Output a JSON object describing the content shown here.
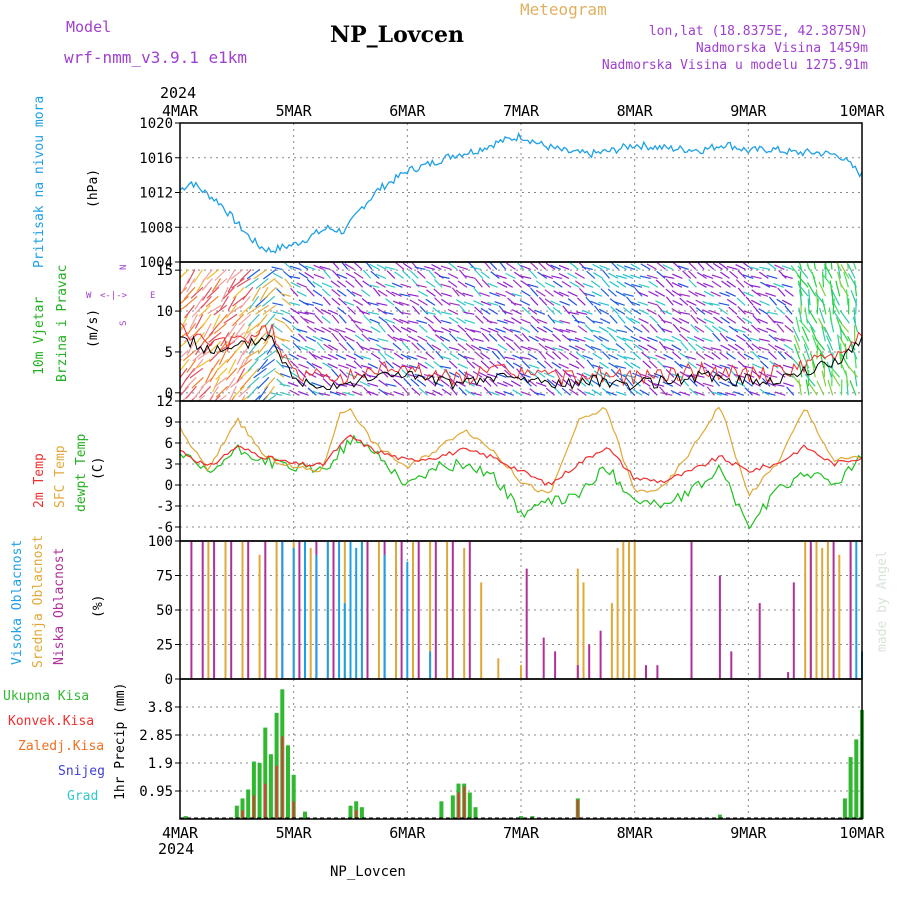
{
  "header": {
    "model_label": "Model",
    "model_name": "wrf-nmm_v3.9.1 e1km",
    "station": "NP_Lovcen",
    "product": "Meteogram",
    "coords": "lon,lat (18.8375E, 42.3875N)",
    "altitude": "Nadmorska Visina 1459m",
    "model_altitude": "Nadmorska Visina u modelu 1275.91m",
    "year_top": "2024",
    "year_bottom": "2024",
    "footer": "NP_Lovcen",
    "watermark": "made by Angel"
  },
  "colors": {
    "pressure": "#1ea0e6",
    "t2m": "#ee3030",
    "sfc": "#e0a838",
    "dewpt": "#22c022",
    "high_cloud": "#1ea0e6",
    "mid_cloud": "#e0a838",
    "low_cloud": "#b0309a",
    "total_precip": "#30b830",
    "conv_precip": "#ee3030",
    "frozen_precip": "#ee7020",
    "snow": "#4040d8",
    "graupel": "#30c8c8",
    "wind_label": "#22b022",
    "purple_text": "#a040d0",
    "gold_text": "#e0b060"
  },
  "time_axis": {
    "ticks": [
      "4MAR",
      "5MAR",
      "6MAR",
      "7MAR",
      "8MAR",
      "9MAR",
      "10MAR"
    ],
    "range_days": [
      0,
      6
    ]
  },
  "chart_data": [
    {
      "id": "pressure",
      "type": "line",
      "ylabel_lines": [
        "Pritisak na nivou mora",
        "(hPa)"
      ],
      "ylim": [
        1004,
        1020
      ],
      "yticks": [
        1004,
        1008,
        1012,
        1016,
        1020
      ],
      "series": [
        {
          "x": [
            0,
            0.1,
            0.2,
            0.35,
            0.5,
            0.6,
            0.7,
            0.8,
            0.9,
            1.0,
            1.1,
            1.2,
            1.3,
            1.45,
            1.6,
            1.75,
            1.9,
            2.0,
            2.2,
            2.4,
            2.6,
            2.8,
            3.0,
            3.2,
            3.4,
            3.6,
            3.8,
            4.0,
            4.2,
            4.4,
            4.6,
            4.8,
            5.0,
            5.2,
            5.4,
            5.6,
            5.8,
            6.0
          ],
          "y": [
            1012.3,
            1013.2,
            1012.2,
            1010.8,
            1008.5,
            1007.0,
            1005.8,
            1005.3,
            1005.7,
            1006.0,
            1006.6,
            1007.3,
            1007.9,
            1007.5,
            1010.3,
            1012.4,
            1013.6,
            1014.5,
            1015.3,
            1016.3,
            1016.8,
            1017.8,
            1018.5,
            1017.4,
            1016.7,
            1016.4,
            1016.8,
            1017.5,
            1017.2,
            1017.0,
            1016.9,
            1017.6,
            1016.8,
            1017.0,
            1016.6,
            1016.6,
            1016.3,
            1014.0
          ]
        }
      ]
    },
    {
      "id": "wind",
      "type": "barbs",
      "ylabel_lines": [
        "10m Vjetar",
        "Brzina i Pravac",
        "(m/s)"
      ],
      "compass": [
        "N",
        "S",
        "W",
        "E"
      ],
      "ylim": [
        -1,
        16
      ],
      "yticks": [
        0,
        5,
        10,
        15
      ],
      "series": [
        {
          "name": "speed",
          "x": [
            0,
            0.2,
            0.4,
            0.6,
            0.8,
            1.0,
            1.3,
            1.6,
            1.9,
            2.2,
            2.5,
            2.8,
            3.1,
            3.4,
            3.7,
            4.0,
            4.3,
            4.6,
            4.9,
            5.2,
            5.5,
            5.8,
            6.0
          ],
          "y": [
            7,
            5.5,
            5,
            6,
            7,
            1.5,
            1,
            1.5,
            2.5,
            1.5,
            1,
            2,
            1.5,
            1,
            1.5,
            1,
            1.5,
            2,
            1.5,
            1.5,
            2.5,
            4,
            6.5
          ]
        }
      ]
    },
    {
      "id": "temperature",
      "type": "line",
      "ylabel_lines": [
        "2m Temp",
        "SFC Temp",
        "dewpt Temp",
        "(C)"
      ],
      "ylim": [
        -8,
        12
      ],
      "yticks": [
        -6,
        -3,
        0,
        3,
        6,
        9,
        12
      ],
      "series": [
        {
          "name": "2m Temp",
          "x": [
            0,
            0.25,
            0.5,
            0.75,
            1.0,
            1.25,
            1.4,
            1.5,
            1.7,
            2.0,
            2.25,
            2.5,
            2.75,
            3.0,
            3.25,
            3.5,
            3.75,
            4.0,
            4.25,
            4.5,
            4.75,
            5.0,
            5.25,
            5.5,
            5.75,
            6.0
          ],
          "y": [
            5,
            2.5,
            5.5,
            4,
            3,
            2.8,
            5.5,
            7,
            5,
            3.5,
            4,
            5,
            4,
            2,
            0,
            3,
            5.5,
            1,
            0.5,
            2,
            4,
            2,
            3,
            5.5,
            3,
            4
          ]
        },
        {
          "name": "SFC Temp",
          "x": [
            0,
            0.25,
            0.5,
            0.75,
            1.0,
            1.25,
            1.4,
            1.5,
            1.7,
            2.0,
            2.25,
            2.5,
            2.75,
            3.0,
            3.25,
            3.5,
            3.75,
            4.0,
            4.25,
            4.5,
            4.75,
            5.0,
            5.25,
            5.5,
            5.75,
            6.0
          ],
          "y": [
            8,
            2,
            9.5,
            4,
            2.5,
            2,
            10,
            11,
            6,
            2.5,
            5,
            8,
            5,
            0.5,
            -1.5,
            9,
            11,
            -1,
            -0.5,
            5,
            11.5,
            -1.5,
            3,
            11,
            3.5,
            4
          ]
        },
        {
          "name": "dewpt Temp",
          "x": [
            0,
            0.25,
            0.5,
            0.75,
            1.0,
            1.25,
            1.4,
            1.5,
            1.7,
            2.0,
            2.25,
            2.5,
            2.75,
            3.0,
            3.25,
            3.5,
            3.75,
            4.0,
            4.25,
            4.5,
            4.75,
            5.0,
            5.25,
            5.5,
            5.75,
            6.0
          ],
          "y": [
            4.5,
            1.5,
            5,
            3.5,
            2.5,
            2,
            4.5,
            6.5,
            5,
            0,
            2.5,
            3,
            1.5,
            -4,
            -2.5,
            -1.5,
            2.5,
            -2,
            -3,
            -1,
            2.5,
            -6,
            -1,
            2,
            0,
            4
          ]
        }
      ]
    },
    {
      "id": "clouds",
      "type": "bar",
      "ylabel_lines": [
        "Visoka Oblacnost",
        "Srednja Oblacnost",
        "Niska Oblacnost",
        "(%)"
      ],
      "ylim": [
        0,
        100
      ],
      "yticks": [
        0,
        25,
        50,
        75,
        100
      ],
      "series": [
        {
          "name": "Visoka Oblacnost",
          "x": [
            0.9,
            1.0,
            1.1,
            1.2,
            1.3,
            1.4,
            1.45,
            1.5,
            1.55,
            1.6,
            1.8,
            2.0,
            2.2,
            5.95,
            6.0
          ],
          "y": [
            100,
            95,
            100,
            90,
            100,
            100,
            55,
            100,
            95,
            100,
            90,
            85,
            20,
            100,
            20
          ]
        },
        {
          "name": "Srednja Oblacnost",
          "x": [
            0.25,
            0.4,
            0.55,
            0.7,
            0.85,
            1.0,
            1.15,
            1.3,
            1.45,
            1.6,
            1.75,
            1.9,
            2.05,
            2.2,
            2.35,
            2.5,
            2.65,
            2.8,
            3.0,
            3.5,
            3.55,
            3.8,
            3.85,
            3.9,
            3.95,
            4.0,
            5.5,
            5.55,
            5.6,
            5.65,
            5.7,
            5.8,
            5.9
          ],
          "y": [
            100,
            100,
            100,
            90,
            100,
            100,
            95,
            100,
            100,
            100,
            100,
            100,
            100,
            100,
            100,
            95,
            70,
            15,
            10,
            80,
            70,
            55,
            95,
            100,
            100,
            100,
            100,
            95,
            100,
            95,
            100,
            90,
            95
          ]
        },
        {
          "name": "Niska Oblacnost",
          "x": [
            0.1,
            0.2,
            0.3,
            0.45,
            0.6,
            0.75,
            0.9,
            1.05,
            1.2,
            1.35,
            1.5,
            1.65,
            1.8,
            1.95,
            2.1,
            2.25,
            2.4,
            2.55,
            3.05,
            3.2,
            3.3,
            3.5,
            3.6,
            3.7,
            4.1,
            4.2,
            4.5,
            4.75,
            4.85,
            5.1,
            5.35,
            5.4,
            5.55,
            5.75,
            5.9
          ],
          "y": [
            100,
            100,
            100,
            100,
            100,
            100,
            100,
            100,
            100,
            100,
            100,
            100,
            100,
            100,
            100,
            100,
            100,
            100,
            80,
            30,
            20,
            10,
            25,
            35,
            10,
            10,
            100,
            75,
            20,
            55,
            5,
            70,
            100,
            100,
            100
          ]
        }
      ]
    },
    {
      "id": "precip",
      "type": "bar",
      "ylabel_lines": [
        "1hr Precip (mm)"
      ],
      "legend": [
        "Ukupna Kisa",
        "Konvek.Kisa",
        "Zaledj.Kisa",
        "Snijeg",
        "Grad"
      ],
      "ylim": [
        0,
        4.75
      ],
      "yticks": [
        0.95,
        1.9,
        2.85,
        3.8
      ],
      "series": [
        {
          "name": "Ukupna Kisa",
          "x": [
            0.05,
            0.5,
            0.55,
            0.6,
            0.65,
            0.7,
            0.75,
            0.8,
            0.85,
            0.9,
            0.95,
            1.0,
            1.1,
            1.5,
            1.55,
            1.6,
            2.3,
            2.4,
            2.45,
            2.5,
            2.55,
            2.6,
            3.0,
            3.1,
            3.5,
            4.75,
            5.85,
            5.9,
            5.95,
            6.0
          ],
          "y": [
            0.1,
            0.45,
            0.7,
            1.0,
            1.95,
            1.9,
            3.1,
            2.2,
            3.6,
            4.4,
            2.5,
            1.5,
            0.25,
            0.45,
            0.6,
            0.4,
            0.6,
            0.8,
            1.2,
            1.2,
            0.9,
            0.4,
            0.1,
            0.1,
            0.7,
            0.15,
            0.7,
            2.1,
            2.7,
            3.7
          ]
        },
        {
          "name": "Konvek.Kisa",
          "x": [
            0.55,
            0.65,
            0.75,
            0.85,
            0.9,
            1.0,
            1.55,
            2.45,
            2.5,
            3.5
          ],
          "y": [
            0.3,
            0.8,
            1.2,
            1.8,
            2.8,
            0.6,
            0.3,
            0.9,
            1.1,
            0.65
          ]
        }
      ]
    }
  ]
}
